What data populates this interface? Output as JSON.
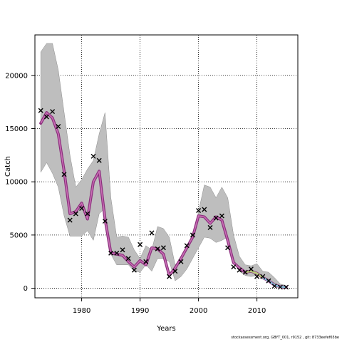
{
  "chart_data": {
    "type": "line",
    "xlabel": "Years",
    "ylabel": "Catch",
    "xlim": [
      1972,
      2017
    ],
    "ylim": [
      -900,
      23800
    ],
    "xticks": [
      1980,
      1990,
      2000,
      2010
    ],
    "yticks": [
      0,
      5000,
      10000,
      15000,
      20000
    ],
    "grid": true,
    "confidence_band": {
      "x": [
        1973,
        1974,
        1975,
        1976,
        1977,
        1978,
        1979,
        1980,
        1981,
        1982,
        1983,
        1984,
        1985,
        1986,
        1987,
        1988,
        1989,
        1990,
        1991,
        1992,
        1993,
        1994,
        1995,
        1996,
        1997,
        1998,
        1999,
        2000,
        2001,
        2002,
        2003,
        2004,
        2005,
        2006,
        2007,
        2008,
        2009,
        2010,
        2011,
        2012,
        2013,
        2014,
        2015
      ],
      "upper": [
        22200,
        23000,
        23000,
        20500,
        16500,
        12500,
        9500,
        10200,
        11200,
        12000,
        14500,
        16500,
        8500,
        4800,
        4900,
        4800,
        3600,
        2800,
        4000,
        3600,
        5800,
        5600,
        4800,
        2200,
        2800,
        3600,
        4600,
        7200,
        9700,
        9500,
        8500,
        9500,
        8500,
        5000,
        3000,
        2200,
        2100,
        2300,
        1600,
        1500,
        1000,
        400,
        250
      ],
      "lower": [
        10900,
        11800,
        10800,
        9500,
        6800,
        4900,
        4900,
        4900,
        5400,
        4500,
        7000,
        7500,
        3200,
        2200,
        2200,
        2200,
        1600,
        1500,
        2200,
        1600,
        2800,
        2800,
        2500,
        700,
        1100,
        1800,
        2800,
        3800,
        4800,
        4700,
        4300,
        4500,
        4800,
        2800,
        1600,
        1200,
        1100,
        1200,
        900,
        800,
        500,
        150,
        80
      ]
    },
    "series": [
      {
        "values": [
          15500,
          16500,
          16000,
          14500,
          11000,
          7000,
          7200,
          8000,
          6500,
          10000,
          11000,
          6500,
          3300,
          3200,
          3100,
          2500,
          2000,
          2600,
          2200,
          3800,
          3700,
          3200,
          1200,
          1900,
          2800,
          3800,
          4800,
          6800,
          6700,
          6100,
          6700,
          6400,
          4500,
          2400,
          1900,
          1500,
          1600,
          1400,
          1000,
          700,
          300,
          150,
          100
        ]
      }
    ],
    "observed": {
      "x": [
        1973,
        1974,
        1975,
        1976,
        1977,
        1978,
        1979,
        1980,
        1981,
        1982,
        1983,
        1984,
        1985,
        1986,
        1987,
        1988,
        1989,
        1990,
        1991,
        1992,
        1993,
        1994,
        1995,
        1996,
        1997,
        1998,
        1999,
        2000,
        2001,
        2002,
        2003,
        2004,
        2005,
        2006,
        2007,
        2008,
        2009,
        2010,
        2011,
        2012,
        2013,
        2014,
        2015
      ],
      "y": [
        16700,
        16100,
        16600,
        15200,
        10700,
        6400,
        7000,
        7500,
        7000,
        12400,
        12000,
        6300,
        3300,
        3300,
        3600,
        2800,
        1700,
        4100,
        2500,
        5200,
        3700,
        3800,
        1100,
        1600,
        2500,
        4000,
        5000,
        7300,
        7400,
        5700,
        6600,
        6800,
        3800,
        2000,
        1700,
        1500,
        1800,
        1100,
        1100,
        700,
        200,
        100,
        100
      ]
    },
    "colors": {
      "band": "#bebebe",
      "band_edge": "#8c8c8c",
      "line_outer": "#8b2f7d",
      "line_inner": "#c86fb4",
      "line_tail": "#87c7df",
      "line_mid_tail": "#b8cf7a",
      "observed": "#000000",
      "grid": "#000000"
    }
  },
  "footer_text": "stockassessment.org, GBYT_001, r9152 , git: 8733eefef65be"
}
